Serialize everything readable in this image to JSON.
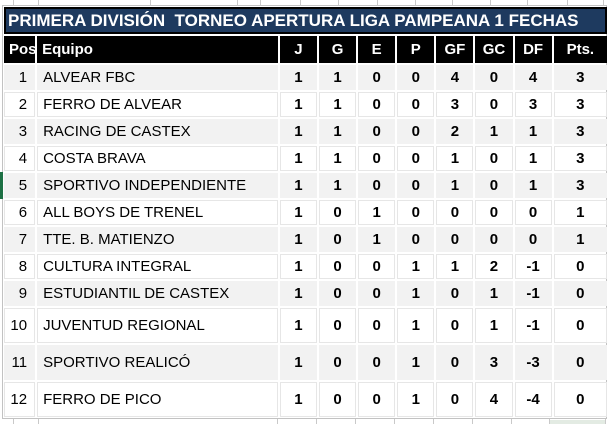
{
  "title": "PRIMERA DIVISIÓN  TORNEO APERTURA LIGA PAMPEANA 1 FECHAS",
  "table": {
    "columns": [
      "Pos",
      "Equipo",
      "J",
      "G",
      "E",
      "P",
      "GF",
      "GC",
      "DF",
      "Pts."
    ],
    "rows": [
      {
        "pos": "1",
        "team": "ALVEAR FBC",
        "stats": [
          "1",
          "1",
          "0",
          "0",
          "4",
          "0",
          "4",
          "3"
        ],
        "tall": false
      },
      {
        "pos": "2",
        "team": "FERRO DE ALVEAR",
        "stats": [
          "1",
          "1",
          "0",
          "0",
          "3",
          "0",
          "3",
          "3"
        ],
        "tall": false
      },
      {
        "pos": "3",
        "team": "RACING DE CASTEX",
        "stats": [
          "1",
          "1",
          "0",
          "0",
          "2",
          "1",
          "1",
          "3"
        ],
        "tall": false
      },
      {
        "pos": "4",
        "team": "COSTA BRAVA",
        "stats": [
          "1",
          "1",
          "0",
          "0",
          "1",
          "0",
          "1",
          "3"
        ],
        "tall": false
      },
      {
        "pos": "5",
        "team": "SPORTIVO INDEPENDIENTE",
        "stats": [
          "1",
          "1",
          "0",
          "0",
          "1",
          "0",
          "1",
          "3"
        ],
        "tall": false
      },
      {
        "pos": "6",
        "team": "ALL BOYS DE TRENEL",
        "stats": [
          "1",
          "0",
          "1",
          "0",
          "0",
          "0",
          "0",
          "1"
        ],
        "tall": false
      },
      {
        "pos": "7",
        "team": "TTE. B. MATIENZO",
        "stats": [
          "1",
          "0",
          "1",
          "0",
          "0",
          "0",
          "0",
          "1"
        ],
        "tall": false
      },
      {
        "pos": "8",
        "team": "CULTURA INTEGRAL",
        "stats": [
          "1",
          "0",
          "0",
          "1",
          "1",
          "2",
          "-1",
          "0"
        ],
        "tall": false
      },
      {
        "pos": "9",
        "team": "ESTUDIANTIL DE CASTEX",
        "stats": [
          "1",
          "0",
          "0",
          "1",
          "0",
          "1",
          "-1",
          "0"
        ],
        "tall": false
      },
      {
        "pos": "10",
        "team": "JUVENTUD REGIONAL",
        "stats": [
          "1",
          "0",
          "0",
          "1",
          "0",
          "1",
          "-1",
          "0"
        ],
        "tall": true
      },
      {
        "pos": "11",
        "team": "SPORTIVO REALICÓ",
        "stats": [
          "1",
          "0",
          "0",
          "1",
          "0",
          "3",
          "-3",
          "0"
        ],
        "tall": true
      },
      {
        "pos": "12",
        "team": "FERRO DE PICO",
        "stats": [
          "1",
          "0",
          "0",
          "1",
          "0",
          "4",
          "-4",
          "0"
        ],
        "tall": true
      }
    ]
  },
  "colors": {
    "title_bg": "#1e3a5f",
    "header_bg": "#000000",
    "stripe_bg": "#f2f2f2",
    "selection_green": "#1e7145"
  }
}
